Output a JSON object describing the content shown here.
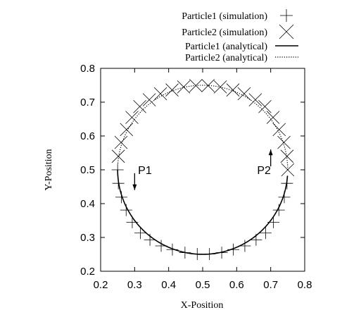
{
  "chart_data": {
    "type": "scatter",
    "xlabel": "X-Position",
    "ylabel": "Y-Position",
    "xlim": [
      0.2,
      0.8
    ],
    "ylim": [
      0.2,
      0.8
    ],
    "xticks": [
      "0.2",
      "0.3",
      "0.4",
      "0.5",
      "0.6",
      "0.7",
      "0.8"
    ],
    "yticks": [
      "0.2",
      "0.3",
      "0.4",
      "0.5",
      "0.6",
      "0.7",
      "0.8"
    ],
    "grid": false,
    "legend_position": "top-right, outside plot",
    "series": [
      {
        "name": "Particle1 (simulation)",
        "marker": "plus",
        "points": [
          [
            0.25,
            0.5
          ],
          [
            0.252,
            0.46
          ],
          [
            0.261,
            0.419
          ],
          [
            0.275,
            0.381
          ],
          [
            0.293,
            0.345
          ],
          [
            0.317,
            0.313
          ],
          [
            0.345,
            0.293
          ],
          [
            0.378,
            0.275
          ],
          [
            0.411,
            0.264
          ],
          [
            0.448,
            0.255
          ],
          [
            0.484,
            0.251
          ],
          [
            0.52,
            0.251
          ],
          [
            0.556,
            0.255
          ],
          [
            0.59,
            0.264
          ],
          [
            0.624,
            0.275
          ],
          [
            0.657,
            0.293
          ],
          [
            0.685,
            0.313
          ],
          [
            0.708,
            0.345
          ],
          [
            0.724,
            0.381
          ],
          [
            0.74,
            0.419
          ],
          [
            0.748,
            0.46
          ]
        ]
      },
      {
        "name": "Particle2 (simulation)",
        "marker": "cross",
        "points": [
          [
            0.75,
            0.5
          ],
          [
            0.748,
            0.54
          ],
          [
            0.739,
            0.581
          ],
          [
            0.725,
            0.619
          ],
          [
            0.707,
            0.655
          ],
          [
            0.683,
            0.687
          ],
          [
            0.655,
            0.707
          ],
          [
            0.622,
            0.725
          ],
          [
            0.589,
            0.736
          ],
          [
            0.552,
            0.745
          ],
          [
            0.516,
            0.749
          ],
          [
            0.48,
            0.749
          ],
          [
            0.444,
            0.745
          ],
          [
            0.41,
            0.736
          ],
          [
            0.376,
            0.725
          ],
          [
            0.343,
            0.707
          ],
          [
            0.315,
            0.687
          ],
          [
            0.292,
            0.655
          ],
          [
            0.276,
            0.619
          ],
          [
            0.26,
            0.581
          ],
          [
            0.252,
            0.54
          ]
        ]
      },
      {
        "name": "Particle1 (analytical)",
        "line": "solid",
        "curve": {
          "center": [
            0.5,
            0.5
          ],
          "radius": 0.25,
          "from_deg": 180,
          "to_deg": 357
        }
      },
      {
        "name": "Particle2 (analytical)",
        "line": "dotted",
        "curve": {
          "center": [
            0.5,
            0.5
          ],
          "radius": 0.25,
          "from_deg": 0,
          "to_deg": 177
        }
      }
    ],
    "annotations": [
      {
        "text": "P1",
        "at": [
          0.31,
          0.5
        ],
        "arrow": "down",
        "arrow_x": 0.3,
        "arrow_from": 0.49,
        "arrow_to": 0.44
      },
      {
        "text": "P2",
        "at": [
          0.66,
          0.5
        ],
        "arrow": "up",
        "arrow_x": 0.7,
        "arrow_from": 0.51,
        "arrow_to": 0.56
      }
    ]
  }
}
